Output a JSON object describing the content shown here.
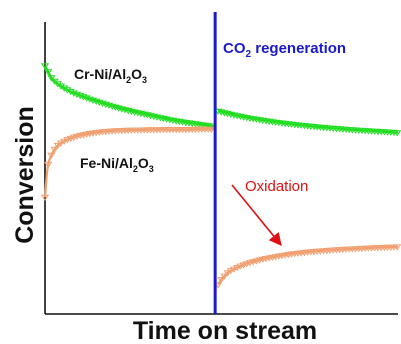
{
  "chart_data": {
    "type": "line",
    "xlabel": "Time on stream",
    "ylabel": "Conversion",
    "grid": false,
    "legend": "none",
    "x_range": [
      0,
      100
    ],
    "y_range": [
      0,
      100
    ],
    "annotations": {
      "regeneration": {
        "text_main": "CO",
        "text_sub": "2",
        "text_rest": " regeneration",
        "x": 48.2,
        "color": "#1a1acc"
      },
      "oxidation": {
        "text": "Oxidation",
        "color": "#dd1111"
      }
    },
    "series": [
      {
        "name": "Cr-Ni/Al2O3",
        "label_parts": [
          "Cr-Ni/Al",
          "2",
          "O",
          "3"
        ],
        "color": "#22dd22",
        "segments": [
          {
            "x": [
              0,
              2,
              4,
              6,
              8,
              10,
              13,
              16,
              19,
              22,
              25,
              28,
              31,
              34,
              37,
              40,
              43,
              46,
              48
            ],
            "y": [
              85,
              80.5,
              78.5,
              77,
              75.8,
              74.8,
              73.5,
              72.3,
              71.2,
              70.2,
              69.3,
              68.5,
              67.7,
              66.9,
              66.2,
              65.6,
              65.1,
              64.6,
              64.2
            ]
          },
          {
            "x": [
              49,
              52,
              55,
              58,
              62,
              66,
              70,
              74,
              78,
              82,
              86,
              90,
              94,
              98,
              100
            ],
            "y": [
              69.5,
              68.6,
              67.8,
              67.1,
              66.3,
              65.6,
              65,
              64.5,
              64,
              63.6,
              63.2,
              62.9,
              62.6,
              62.3,
              62.1
            ]
          }
        ]
      },
      {
        "name": "Fe-Ni/Al2O3",
        "label_parts": [
          "Fe-Ni/Al",
          "2",
          "O",
          "3"
        ],
        "color": "#f0a070",
        "segments": [
          {
            "x": [
              0,
              0.5,
              1,
              2,
              3,
              4,
              6,
              8,
              10,
              13,
              16,
              20,
              25,
              30,
              35,
              40,
              44,
              48
            ],
            "y": [
              40,
              48,
              52,
              55,
              57,
              58.2,
              59.6,
              60.5,
              61.2,
              61.9,
              62.4,
              62.8,
              63,
              63.1,
              63.2,
              63.2,
              63.3,
              63.3
            ]
          },
          {
            "x": [
              49,
              50,
              52,
              55,
              58,
              62,
              66,
              70,
              75,
              80,
              85,
              90,
              95,
              100
            ],
            "y": [
              10,
              12,
              14.5,
              16.3,
              17.6,
              18.9,
              19.8,
              20.6,
              21.3,
              21.8,
              22.2,
              22.5,
              22.8,
              23
            ]
          }
        ]
      }
    ]
  }
}
